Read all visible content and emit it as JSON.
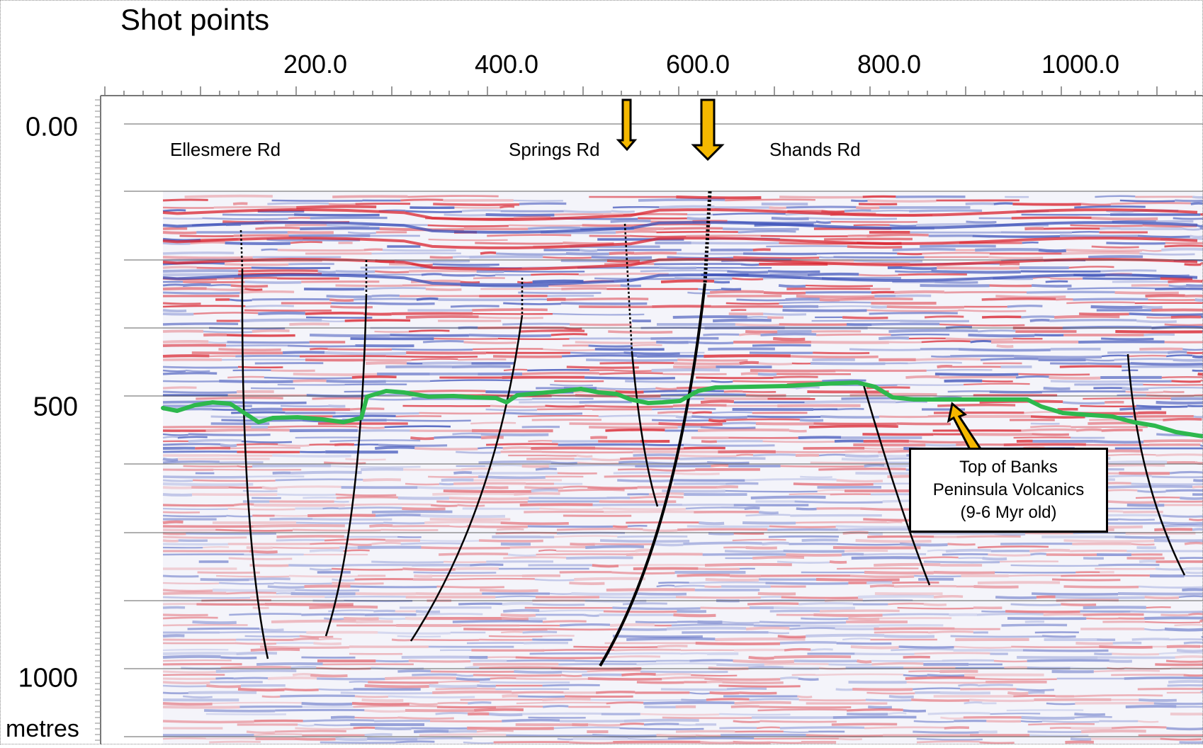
{
  "figure": {
    "x_axis_title": "Shot points",
    "x_ticks": [
      "200.0",
      "400.0",
      "600.0",
      "800.0",
      "1000.0"
    ],
    "y_ticks": [
      "0.00",
      "500",
      "1000"
    ],
    "y_unit": "metres",
    "road_labels": [
      "Ellesmere Rd",
      "Springs Rd",
      "Shands Rd"
    ],
    "annotation_lines": [
      "Top of Banks",
      "Peninsula Volcanics",
      "(9-6 Myr old)"
    ],
    "colors": {
      "horizon": "#2db84d",
      "arrow_fill": "#f5b800",
      "fault_line": "#000000",
      "positive_amplitude": "#d9232e",
      "negative_amplitude": "#3a4fb8"
    }
  }
}
